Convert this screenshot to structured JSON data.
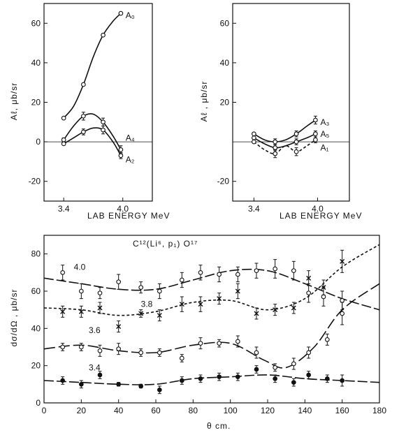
{
  "chart_data": [
    {
      "id": "top-left",
      "type": "line",
      "xlabel": "LAB  ENERGY  MeV",
      "ylabel": "Aℓ,  μb/sr",
      "xlim": [
        3.2,
        4.3
      ],
      "ylim": [
        -30,
        70
      ],
      "x_ticks": [
        {
          "v": 3.4,
          "label": "3.4"
        },
        {
          "v": 4.0,
          "label": "4.0"
        }
      ],
      "y_ticks": [
        {
          "v": 60,
          "label": "60"
        },
        {
          "v": 40,
          "label": "40"
        },
        {
          "v": 20,
          "label": "20"
        },
        {
          "v": 0,
          "label": "0"
        },
        {
          "v": -20,
          "label": "-20"
        }
      ],
      "zero_line": true,
      "series": [
        {
          "name": "A₀",
          "marker": "open",
          "dash": "",
          "points": [
            [
              3.4,
              12,
              0
            ],
            [
              3.6,
              29,
              0
            ],
            [
              3.8,
              54,
              0
            ],
            [
              3.98,
              65,
              0
            ]
          ],
          "curve": [
            [
              3.4,
              12
            ],
            [
              3.5,
              18
            ],
            [
              3.6,
              29
            ],
            [
              3.7,
              43
            ],
            [
              3.8,
              54
            ],
            [
              3.9,
              61
            ],
            [
              3.98,
              65
            ]
          ],
          "label_at": [
            4.0,
            64
          ]
        },
        {
          "name": "A₄",
          "marker": "open",
          "dash": "",
          "points": [
            [
              3.4,
              1,
              1
            ],
            [
              3.6,
              13,
              2
            ],
            [
              3.8,
              10,
              2
            ],
            [
              3.98,
              -4,
              2
            ]
          ],
          "curve": [
            [
              3.4,
              1
            ],
            [
              3.5,
              8
            ],
            [
              3.6,
              13
            ],
            [
              3.7,
              14
            ],
            [
              3.8,
              10
            ],
            [
              3.9,
              3
            ],
            [
              3.98,
              -4
            ]
          ],
          "label_at": [
            4.0,
            2
          ]
        },
        {
          "name": "A₂",
          "marker": "open",
          "dash": "",
          "points": [
            [
              3.4,
              -1,
              0
            ],
            [
              3.6,
              5,
              1.5
            ],
            [
              3.8,
              6,
              2
            ],
            [
              3.98,
              -7,
              1.5
            ]
          ],
          "curve": [
            [
              3.4,
              -1
            ],
            [
              3.5,
              2
            ],
            [
              3.6,
              5
            ],
            [
              3.7,
              7
            ],
            [
              3.8,
              6
            ],
            [
              3.9,
              0
            ],
            [
              3.98,
              -7
            ]
          ],
          "label_at": [
            4.0,
            -9
          ]
        }
      ]
    },
    {
      "id": "top-right",
      "type": "line",
      "xlabel": "LAB  ENERGY  MeV",
      "ylabel": "Aℓ ,  μb/sr",
      "xlim": [
        3.2,
        4.3
      ],
      "ylim": [
        -30,
        70
      ],
      "x_ticks": [
        {
          "v": 3.4,
          "label": "3.4"
        },
        {
          "v": 4.0,
          "label": "4.0"
        }
      ],
      "y_ticks": [
        {
          "v": 60,
          "label": "60"
        },
        {
          "v": 40,
          "label": "40"
        },
        {
          "v": 20,
          "label": "20"
        },
        {
          "v": -20,
          "label": "-20"
        }
      ],
      "zero_line": true,
      "series": [
        {
          "name": "A₃",
          "marker": "open",
          "dash": "",
          "points": [
            [
              3.4,
              4,
              0
            ],
            [
              3.6,
              0,
              1.5
            ],
            [
              3.8,
              4,
              1.5
            ],
            [
              3.98,
              11,
              2
            ]
          ],
          "curve": [
            [
              3.4,
              4
            ],
            [
              3.5,
              1
            ],
            [
              3.6,
              0
            ],
            [
              3.7,
              1
            ],
            [
              3.8,
              4
            ],
            [
              3.9,
              8
            ],
            [
              3.98,
              11
            ]
          ],
          "label_at": [
            4.0,
            10
          ]
        },
        {
          "name": "A₅",
          "marker": "open",
          "dash": "",
          "points": [
            [
              3.4,
              2,
              0
            ],
            [
              3.6,
              -3,
              1.5
            ],
            [
              3.8,
              0,
              1.5
            ],
            [
              3.98,
              4,
              1.5
            ]
          ],
          "curve": [
            [
              3.4,
              2
            ],
            [
              3.5,
              -1
            ],
            [
              3.6,
              -3
            ],
            [
              3.7,
              -2
            ],
            [
              3.8,
              0
            ],
            [
              3.9,
              2
            ],
            [
              3.98,
              4
            ]
          ],
          "label_at": [
            4.0,
            4
          ]
        },
        {
          "name": "A₁",
          "marker": "open",
          "dash": "4 3",
          "points": [
            [
              3.4,
              0,
              0
            ],
            [
              3.6,
              -6,
              2
            ],
            [
              3.8,
              -5,
              2
            ],
            [
              3.98,
              1,
              1.5
            ]
          ],
          "curve": [
            [
              3.4,
              0
            ],
            [
              3.5,
              -4
            ],
            [
              3.6,
              -6
            ],
            [
              3.7,
              -2
            ],
            [
              3.8,
              -5
            ],
            [
              3.9,
              -2
            ],
            [
              3.98,
              1
            ]
          ],
          "label_at": [
            4.0,
            -3
          ]
        }
      ]
    },
    {
      "id": "bottom",
      "type": "line",
      "title": "C¹²(Li⁶, p₁) O¹⁷",
      "xlabel": "θ cm.",
      "ylabel": "dσ/dΩ ,  μb/sr",
      "xlim": [
        0,
        180
      ],
      "ylim": [
        0,
        90
      ],
      "x_ticks": [
        {
          "v": 0,
          "label": "0"
        },
        {
          "v": 20,
          "label": "20"
        },
        {
          "v": 40,
          "label": "40"
        },
        {
          "v": 60,
          "label": "60"
        },
        {
          "v": 80,
          "label": "80"
        },
        {
          "v": 100,
          "label": "100"
        },
        {
          "v": 120,
          "label": "120"
        },
        {
          "v": 140,
          "label": "140"
        },
        {
          "v": 160,
          "label": "160"
        },
        {
          "v": 180,
          "label": "180"
        }
      ],
      "y_ticks": [
        {
          "v": 80,
          "label": "80"
        },
        {
          "v": 60,
          "label": "60"
        },
        {
          "v": 40,
          "label": "40"
        },
        {
          "v": 20,
          "label": "20"
        },
        {
          "v": 0,
          "label": "0"
        }
      ],
      "zero_line": false,
      "series": [
        {
          "name": "4.0",
          "marker": "open",
          "dash": "14 4",
          "points": [
            [
              10,
              70,
              4
            ],
            [
              20,
              60,
              4
            ],
            [
              30,
              59,
              3
            ],
            [
              40,
              65,
              4
            ],
            [
              52,
              62,
              3
            ],
            [
              62,
              60,
              4
            ],
            [
              74,
              66,
              4
            ],
            [
              84,
              70,
              4
            ],
            [
              94,
              69,
              4
            ],
            [
              104,
              69,
              4
            ],
            [
              114,
              71,
              4
            ],
            [
              124,
              72,
              5
            ],
            [
              134,
              71,
              5
            ],
            [
              142,
              59,
              5
            ],
            [
              150,
              57,
              5
            ],
            [
              160,
              55,
              5
            ]
          ],
          "curve": [
            [
              0,
              67
            ],
            [
              20,
              64
            ],
            [
              40,
              61
            ],
            [
              60,
              61
            ],
            [
              80,
              66
            ],
            [
              100,
              71
            ],
            [
              120,
              71
            ],
            [
              140,
              64
            ],
            [
              160,
              56
            ],
            [
              180,
              50
            ]
          ],
          "label_at": [
            16,
            73
          ]
        },
        {
          "name": "3.8",
          "marker": "x",
          "dash": "4 3",
          "points": [
            [
              10,
              49,
              3
            ],
            [
              20,
              49,
              3
            ],
            [
              30,
              51,
              3
            ],
            [
              40,
              41,
              3
            ],
            [
              52,
              48,
              2
            ],
            [
              62,
              47,
              3
            ],
            [
              74,
              53,
              4
            ],
            [
              84,
              53,
              4
            ],
            [
              94,
              56,
              3
            ],
            [
              104,
              60,
              4
            ],
            [
              114,
              48,
              3
            ],
            [
              124,
              50,
              3
            ],
            [
              134,
              51,
              3
            ],
            [
              142,
              67,
              4
            ],
            [
              150,
              62,
              4
            ],
            [
              160,
              76,
              6
            ]
          ],
          "curve": [
            [
              0,
              51
            ],
            [
              20,
              50
            ],
            [
              40,
              47
            ],
            [
              60,
              49
            ],
            [
              80,
              54
            ],
            [
              100,
              55
            ],
            [
              120,
              50
            ],
            [
              140,
              56
            ],
            [
              160,
              73
            ],
            [
              180,
              85
            ]
          ],
          "label_at": [
            52,
            53
          ]
        },
        {
          "name": "3.6",
          "marker": "open",
          "dash": "16 5",
          "points": [
            [
              10,
              30,
              2
            ],
            [
              20,
              30,
              2
            ],
            [
              30,
              28,
              3
            ],
            [
              40,
              29,
              3
            ],
            [
              52,
              27,
              2
            ],
            [
              62,
              27,
              2
            ],
            [
              74,
              24,
              2
            ],
            [
              84,
              32,
              3
            ],
            [
              94,
              32,
              2
            ],
            [
              104,
              33,
              3
            ],
            [
              114,
              27,
              3
            ],
            [
              124,
              19,
              2
            ],
            [
              134,
              21,
              3
            ],
            [
              142,
              27,
              3
            ],
            [
              152,
              34,
              3
            ],
            [
              160,
              48,
              6
            ]
          ],
          "curve": [
            [
              0,
              29
            ],
            [
              20,
              31
            ],
            [
              40,
              28
            ],
            [
              60,
              27
            ],
            [
              80,
              31
            ],
            [
              100,
              32
            ],
            [
              118,
              23
            ],
            [
              130,
              19
            ],
            [
              145,
              30
            ],
            [
              160,
              50
            ],
            [
              180,
              64
            ]
          ],
          "label_at": [
            24,
            39
          ]
        },
        {
          "name": "3.4",
          "marker": "filled",
          "dash": "14 4",
          "points": [
            [
              10,
              12,
              2
            ],
            [
              20,
              10,
              2
            ],
            [
              30,
              15,
              2
            ],
            [
              40,
              10,
              1
            ],
            [
              52,
              9,
              1
            ],
            [
              62,
              7,
              2
            ],
            [
              74,
              12,
              2
            ],
            [
              84,
              13,
              2
            ],
            [
              94,
              14,
              2
            ],
            [
              104,
              14,
              2
            ],
            [
              114,
              18,
              2
            ],
            [
              124,
              13,
              2
            ],
            [
              134,
              11,
              2
            ],
            [
              142,
              15,
              2
            ],
            [
              152,
              13,
              2
            ],
            [
              160,
              12,
              3
            ]
          ],
          "curve": [
            [
              0,
              12
            ],
            [
              20,
              11
            ],
            [
              40,
              10
            ],
            [
              60,
              10
            ],
            [
              80,
              13
            ],
            [
              100,
              14
            ],
            [
              120,
              15
            ],
            [
              140,
              13
            ],
            [
              160,
              12
            ],
            [
              180,
              11
            ]
          ],
          "label_at": [
            24,
            19
          ]
        }
      ]
    }
  ]
}
